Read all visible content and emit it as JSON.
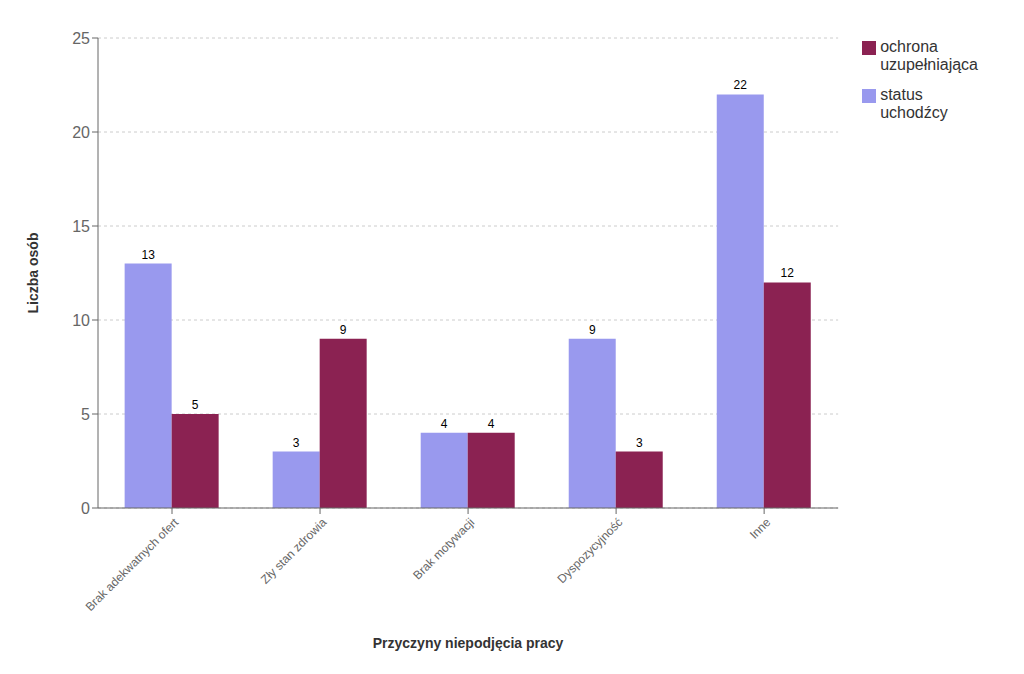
{
  "chart_data": {
    "type": "bar",
    "categories": [
      "Brak adekwatnych ofert",
      "Zły stan zdrowia",
      "Brak motywacji",
      "Dyspozycyjność",
      "Inne"
    ],
    "series": [
      {
        "name": "status\nuchodźcy",
        "color": "#9999EE",
        "values": [
          13,
          3,
          4,
          9,
          22
        ]
      },
      {
        "name": "ochrona\nuzupełniająca",
        "color": "#8B2252",
        "values": [
          5,
          9,
          4,
          3,
          12
        ]
      }
    ],
    "xlabel": "Przyczyny niepodjęcia pracy",
    "ylabel": "Liczba osób",
    "ylim": [
      0,
      25
    ],
    "yticks": [
      0,
      5,
      10,
      15,
      20,
      25
    ],
    "grid": true,
    "data_labels": true,
    "legend": "right"
  }
}
